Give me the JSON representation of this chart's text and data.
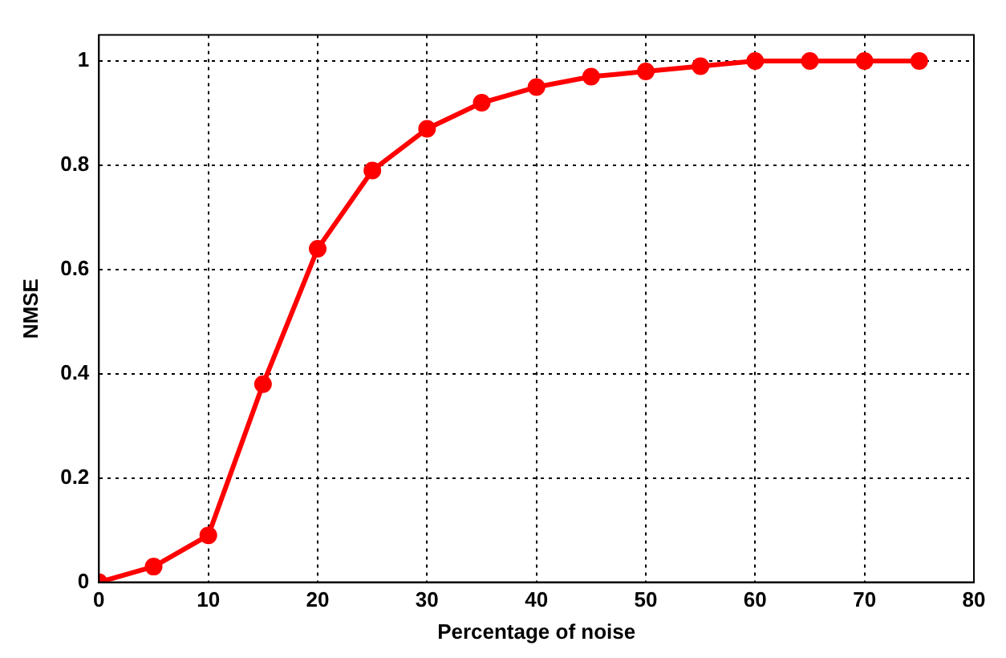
{
  "chart_data": {
    "type": "line",
    "xlabel": "Percentage of noise",
    "ylabel": "NMSE",
    "x": [
      0,
      5,
      10,
      15,
      20,
      25,
      30,
      35,
      40,
      45,
      50,
      55,
      60,
      65,
      70,
      75
    ],
    "series": [
      {
        "color": "#ff0000",
        "values": [
          0,
          0.03,
          0.09,
          0.38,
          0.64,
          0.79,
          0.87,
          0.92,
          0.95,
          0.97,
          0.98,
          0.99,
          1,
          1,
          1,
          1
        ]
      }
    ],
    "xlim": [
      0,
      80
    ],
    "xticks": [
      0,
      10,
      20,
      30,
      40,
      50,
      60,
      70,
      80
    ],
    "ylim": [
      0,
      1.05
    ],
    "yticks": [
      0,
      0.2,
      0.4,
      0.6,
      0.8,
      1
    ],
    "grid": true,
    "legend": false,
    "marker": "circle",
    "line_style": "solid"
  }
}
